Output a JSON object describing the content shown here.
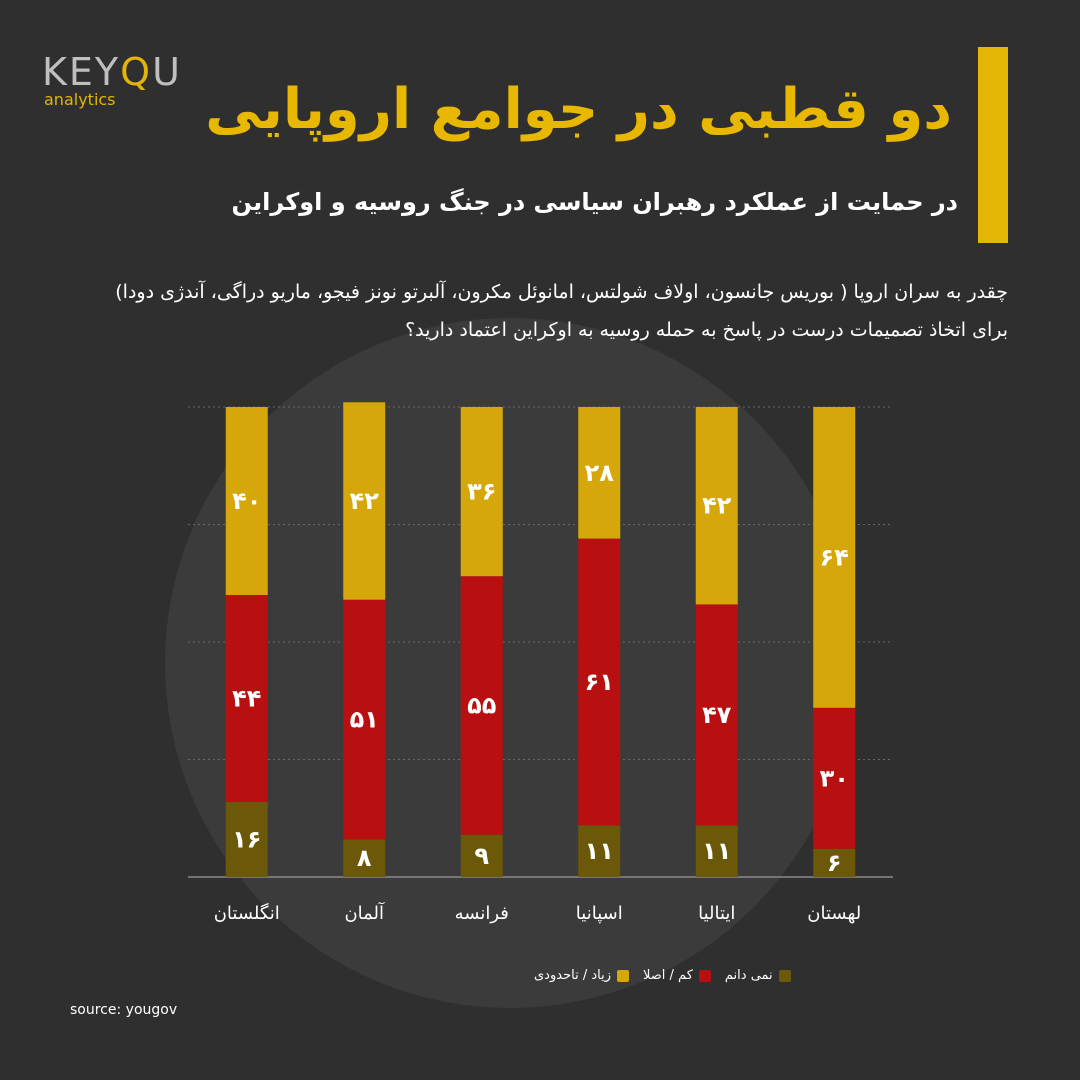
{
  "brand": {
    "logo_word_left": "KEY",
    "logo_word_q": "Q",
    "logo_word_right": "U",
    "logo_sub": "analytics"
  },
  "header": {
    "title": "دو قطبی در جوامع اروپایی",
    "subtitle": "در حمایت از عملکرد رهبران سیاسی در جنگ روسیه و اوکراین",
    "question": "چقدر به سران اروپا ( بوریس جانسون، اولاف شولتس، امانوئل مکرون، آلبرتو نونز فیجو، ماریو دراگی، آندژی دودا) برای اتخاذ تصمیمات درست در پاسخ به حمله روسیه به اوکراین اعتماد دارید؟"
  },
  "colors": {
    "accent": "#e3b505",
    "much": "#d6a70a",
    "little": "#b81010",
    "dontknow": "#6b5808"
  },
  "chart_data": {
    "type": "bar",
    "stacked": true,
    "categories": [
      "انگلستان",
      "آلمان",
      "فرانسه",
      "اسپانیا",
      "ایتالیا",
      "لهستان"
    ],
    "series": [
      {
        "name": "نمی دانم",
        "values": [
          16,
          8,
          9,
          11,
          11,
          6
        ],
        "labels": [
          "۱۶",
          "۸",
          "۹",
          "۱۱",
          "۱۱",
          "۶"
        ]
      },
      {
        "name": "کم / اصلا",
        "values": [
          44,
          51,
          55,
          61,
          47,
          30
        ],
        "labels": [
          "۴۴",
          "۵۱",
          "۵۵",
          "۶۱",
          "۴۷",
          "۳۰"
        ]
      },
      {
        "name": "زیاد / تاحدودی",
        "values": [
          40,
          42,
          36,
          28,
          42,
          64
        ],
        "labels": [
          "۴۰",
          "۴۲",
          "۳۶",
          "۲۸",
          "۴۲",
          "۶۴"
        ]
      }
    ],
    "ylim": [
      0,
      100
    ],
    "grid": true,
    "legend": "bottom"
  },
  "footer": {
    "source": "source: yougov"
  }
}
